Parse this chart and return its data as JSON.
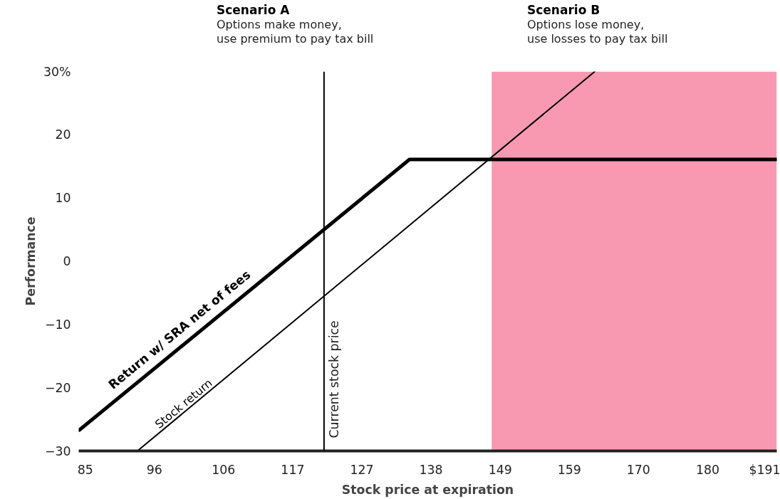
{
  "chart_data": {
    "type": "line",
    "xlabel": "Stock price at expiration",
    "ylabel": "Performance",
    "xlim": [
      84,
      191
    ],
    "ylim": [
      -30,
      30
    ],
    "xticks": [
      85,
      {
        "value": 95.6,
        "label": "96"
      },
      {
        "value": 106.2,
        "label": "106"
      },
      {
        "value": 116.8,
        "label": "117"
      },
      {
        "value": 127.4,
        "label": "127"
      },
      138,
      {
        "value": 148.6,
        "label": "149"
      },
      {
        "value": 159.2,
        "label": "159"
      },
      {
        "value": 169.8,
        "label": "170"
      },
      {
        "value": 180.4,
        "label": "180"
      },
      {
        "value": 191,
        "label": "$191"
      }
    ],
    "yticks": [
      -30,
      -20,
      -10,
      0,
      10,
      20,
      {
        "value": 30,
        "label": "30%"
      }
    ],
    "grid": false,
    "series": [
      {
        "name": "Return w/ SRA net of fees",
        "color": "#000000",
        "x": [
          84.1,
          134.7,
          191
        ],
        "values": [
          -26.7,
          16.1,
          16.1
        ]
      },
      {
        "name": "Stock return",
        "color": "#000000",
        "x": [
          93.0,
          163.1
        ],
        "values": [
          -30,
          30
        ]
      }
    ],
    "ref_lines": [
      {
        "axis": "x",
        "value": 121.6,
        "label": "Current stock price",
        "color": "#000000"
      }
    ],
    "bands": [
      {
        "axis": "x",
        "from": 147.3,
        "to": 191,
        "color": "#f899b1"
      }
    ],
    "annotations": [
      "Scenario A\nOptions make money,\nuse premium to pay tax bill",
      "Scenario B\nOptions lose money,\nuse losses to pay tax bill"
    ]
  }
}
